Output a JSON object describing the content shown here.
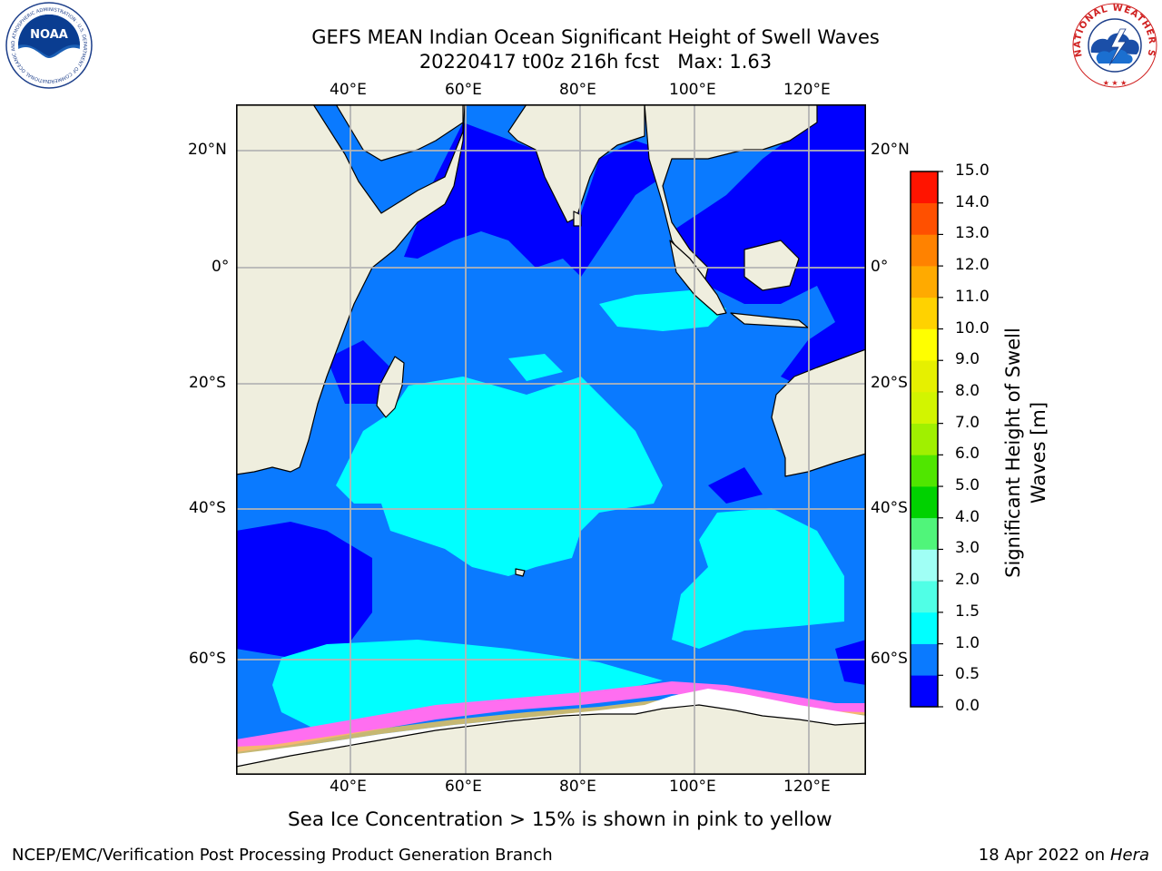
{
  "header": {
    "title_line1": "GEFS MEAN Indian Ocean Significant Height of Swell Waves",
    "title_line2": "20220417 t00z 216h fcst   Max: 1.63"
  },
  "map": {
    "region": "Indian Ocean",
    "longitude_labels": [
      "40°E",
      "60°E",
      "80°E",
      "100°E",
      "120°E"
    ],
    "latitude_labels": [
      "20°N",
      "0°",
      "20°S",
      "40°S",
      "60°S"
    ],
    "land_color": "#efeede",
    "grid_color": "#b4b4b4"
  },
  "colorbar": {
    "title_line1": "Significant Height of Swell",
    "title_line2": "Waves [m]",
    "tick_labels": [
      "0.0",
      "0.5",
      "1.0",
      "1.5",
      "2.0",
      "3.0",
      "4.0",
      "5.0",
      "6.0",
      "7.0",
      "8.0",
      "9.0",
      "10.0",
      "11.0",
      "12.0",
      "13.0",
      "14.0",
      "15.0"
    ],
    "colors": [
      "#0000ff",
      "#0a7aff",
      "#00ffff",
      "#50ffe6",
      "#a0fff5",
      "#50f57a",
      "#00d200",
      "#50e600",
      "#a0f000",
      "#d2f500",
      "#e6f000",
      "#ffff00",
      "#ffd200",
      "#ffaa00",
      "#ff8200",
      "#ff5000",
      "#ff1400"
    ]
  },
  "caption": "Sea Ice Concentration > 15% is shown in pink to yellow",
  "footer": {
    "left": "NCEP/EMC/Verification Post Processing Product Generation Branch",
    "right_prefix": "18 Apr 2022 on ",
    "right_host": "Hera"
  },
  "logos": {
    "left_text": "NOAA",
    "left_ring_text": "NATIONAL OCEANIC AND ATMOSPHERIC ADMINISTRATION · U.S. DEPARTMENT OF COMMERCE",
    "right_ring_text": "NATIONAL WEATHER SERVICE"
  }
}
